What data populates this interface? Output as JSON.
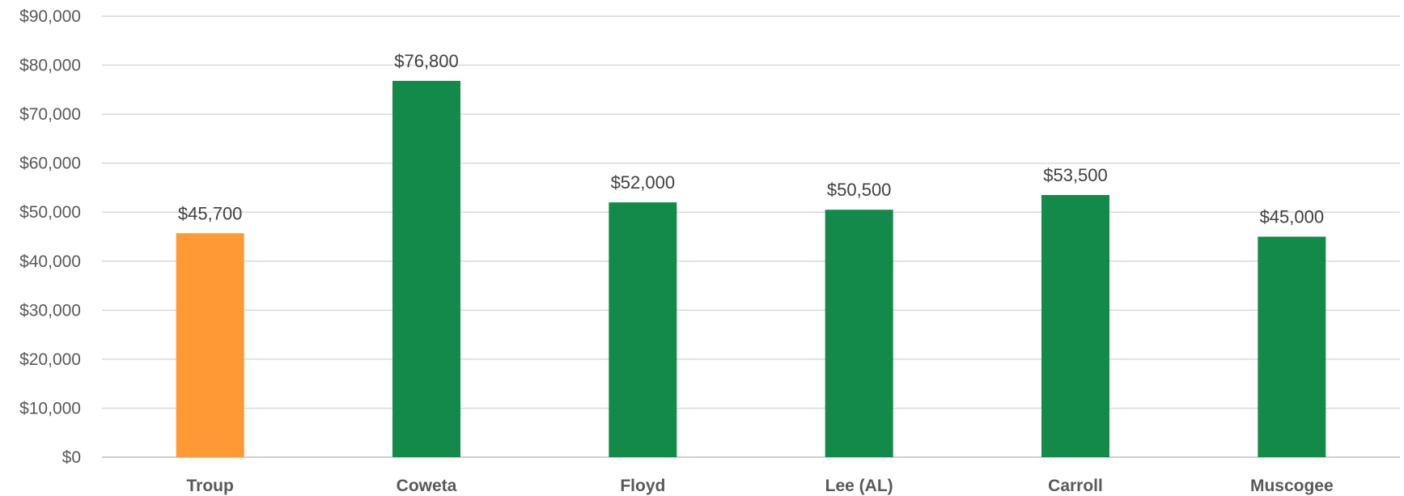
{
  "chart_data": {
    "type": "bar",
    "title": "",
    "xlabel": "",
    "ylabel": "",
    "categories": [
      "Troup",
      "Coweta",
      "Floyd",
      "Lee (AL)",
      "Carroll",
      "Muscogee"
    ],
    "values": [
      45700,
      76800,
      52000,
      50500,
      53500,
      45000
    ],
    "data_labels": [
      "$45,700",
      "$76,800",
      "$52,000",
      "$50,500",
      "$53,500",
      "$45,000"
    ],
    "bar_colors": [
      "#ff9933",
      "#138a4a",
      "#138a4a",
      "#138a4a",
      "#138a4a",
      "#138a4a"
    ],
    "ylim": [
      0,
      90000
    ],
    "yticks": [
      0,
      10000,
      20000,
      30000,
      40000,
      50000,
      60000,
      70000,
      80000,
      90000
    ],
    "ytick_labels": [
      "$0",
      "$10,000",
      "$20,000",
      "$30,000",
      "$40,000",
      "$50,000",
      "$60,000",
      "$70,000",
      "$80,000",
      "$90,000"
    ],
    "grid": true,
    "legend": "none"
  }
}
